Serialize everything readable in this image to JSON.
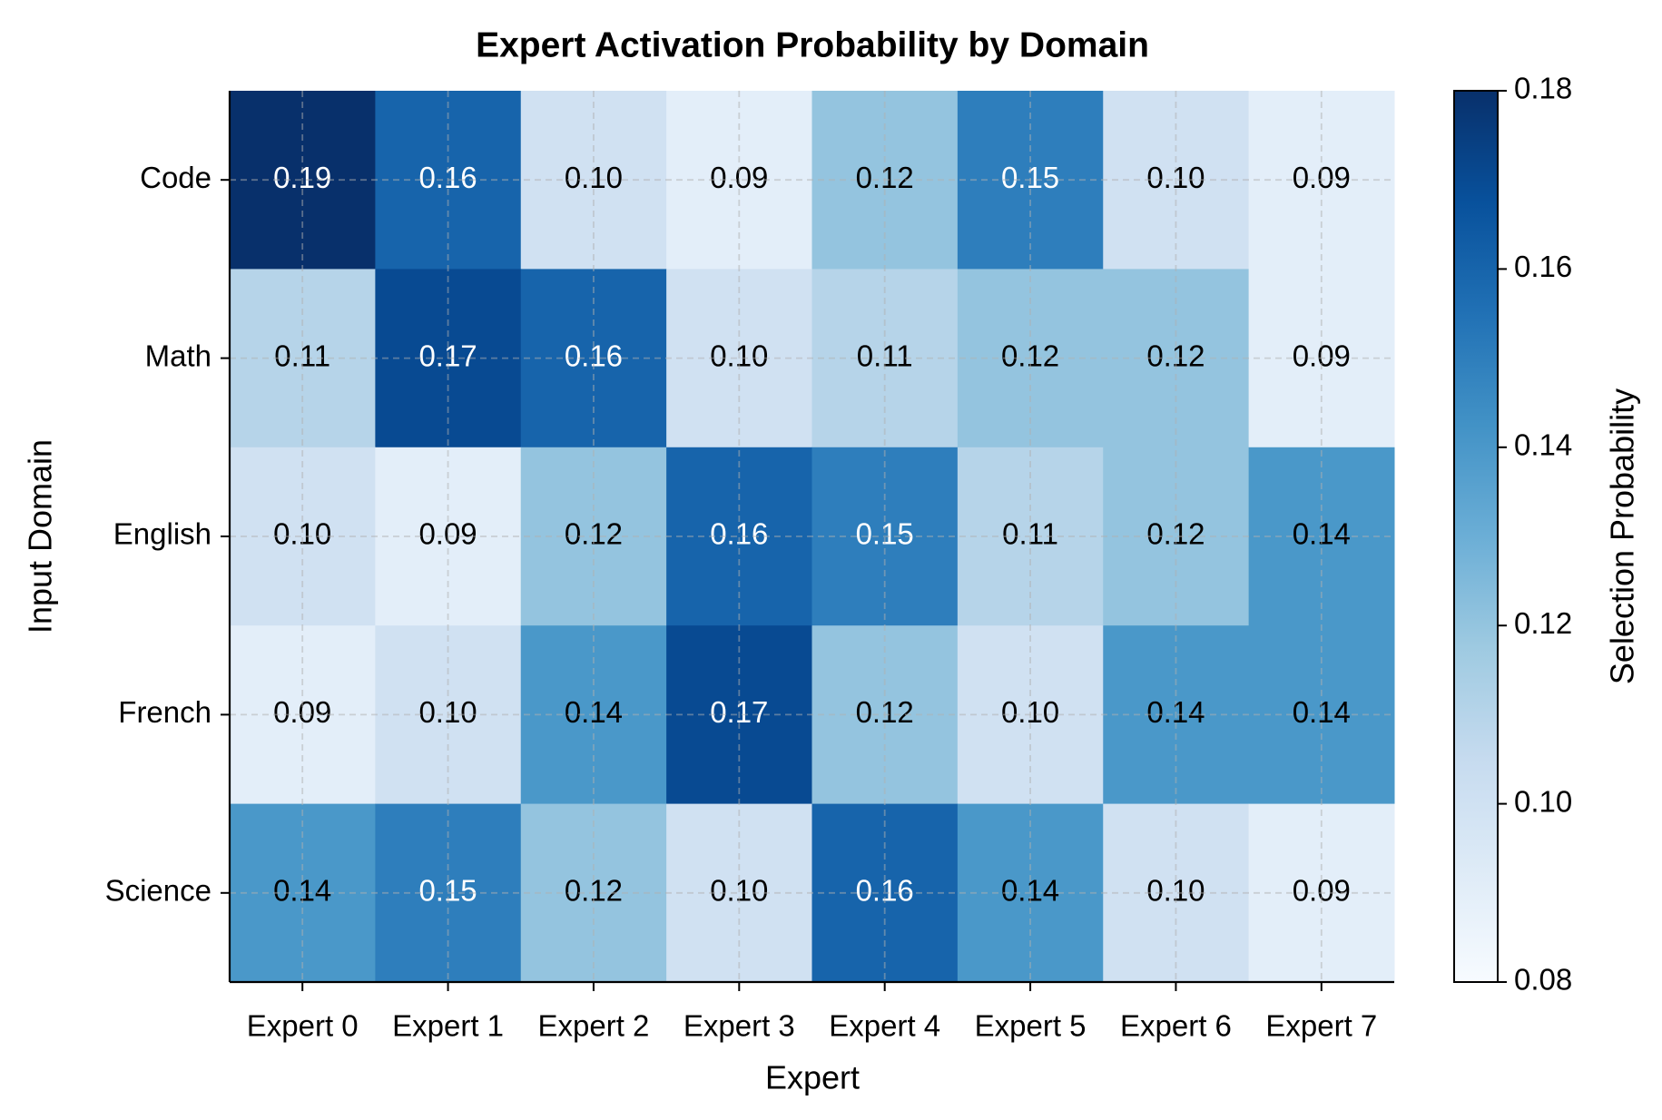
{
  "chart_data": {
    "type": "heatmap",
    "title": "Expert Activation Probability by Domain",
    "x_label": "Expert",
    "y_label": "Input Domain",
    "categories": [
      "Expert 0",
      "Expert 1",
      "Expert 2",
      "Expert 3",
      "Expert 4",
      "Expert 5",
      "Expert 6",
      "Expert 7"
    ],
    "rows": [
      "Code",
      "Math",
      "English",
      "French",
      "Science"
    ],
    "values": [
      [
        0.19,
        0.16,
        0.1,
        0.09,
        0.12,
        0.15,
        0.1,
        0.09
      ],
      [
        0.11,
        0.17,
        0.16,
        0.1,
        0.11,
        0.12,
        0.12,
        0.09
      ],
      [
        0.1,
        0.09,
        0.12,
        0.16,
        0.15,
        0.11,
        0.12,
        0.14
      ],
      [
        0.09,
        0.1,
        0.14,
        0.17,
        0.12,
        0.1,
        0.14,
        0.14
      ],
      [
        0.14,
        0.15,
        0.12,
        0.1,
        0.16,
        0.14,
        0.1,
        0.09
      ]
    ],
    "value_labels": [
      [
        "0.19",
        "0.16",
        "0.10",
        "0.09",
        "0.12",
        "0.15",
        "0.10",
        "0.09"
      ],
      [
        "0.11",
        "0.17",
        "0.16",
        "0.10",
        "0.11",
        "0.12",
        "0.12",
        "0.09"
      ],
      [
        "0.10",
        "0.09",
        "0.12",
        "0.16",
        "0.15",
        "0.11",
        "0.12",
        "0.14"
      ],
      [
        "0.09",
        "0.10",
        "0.14",
        "0.17",
        "0.12",
        "0.10",
        "0.14",
        "0.14"
      ],
      [
        "0.14",
        "0.15",
        "0.12",
        "0.10",
        "0.16",
        "0.14",
        "0.10",
        "0.09"
      ]
    ],
    "colormap": "Blues",
    "grid": true,
    "colorbar_label": "Selection Probability",
    "clim": [
      0.08,
      0.18
    ],
    "cticks": [
      0.08,
      {
        "value": 0.1,
        "label": "0.10"
      },
      0.12,
      0.14,
      0.16,
      0.18
    ]
  }
}
